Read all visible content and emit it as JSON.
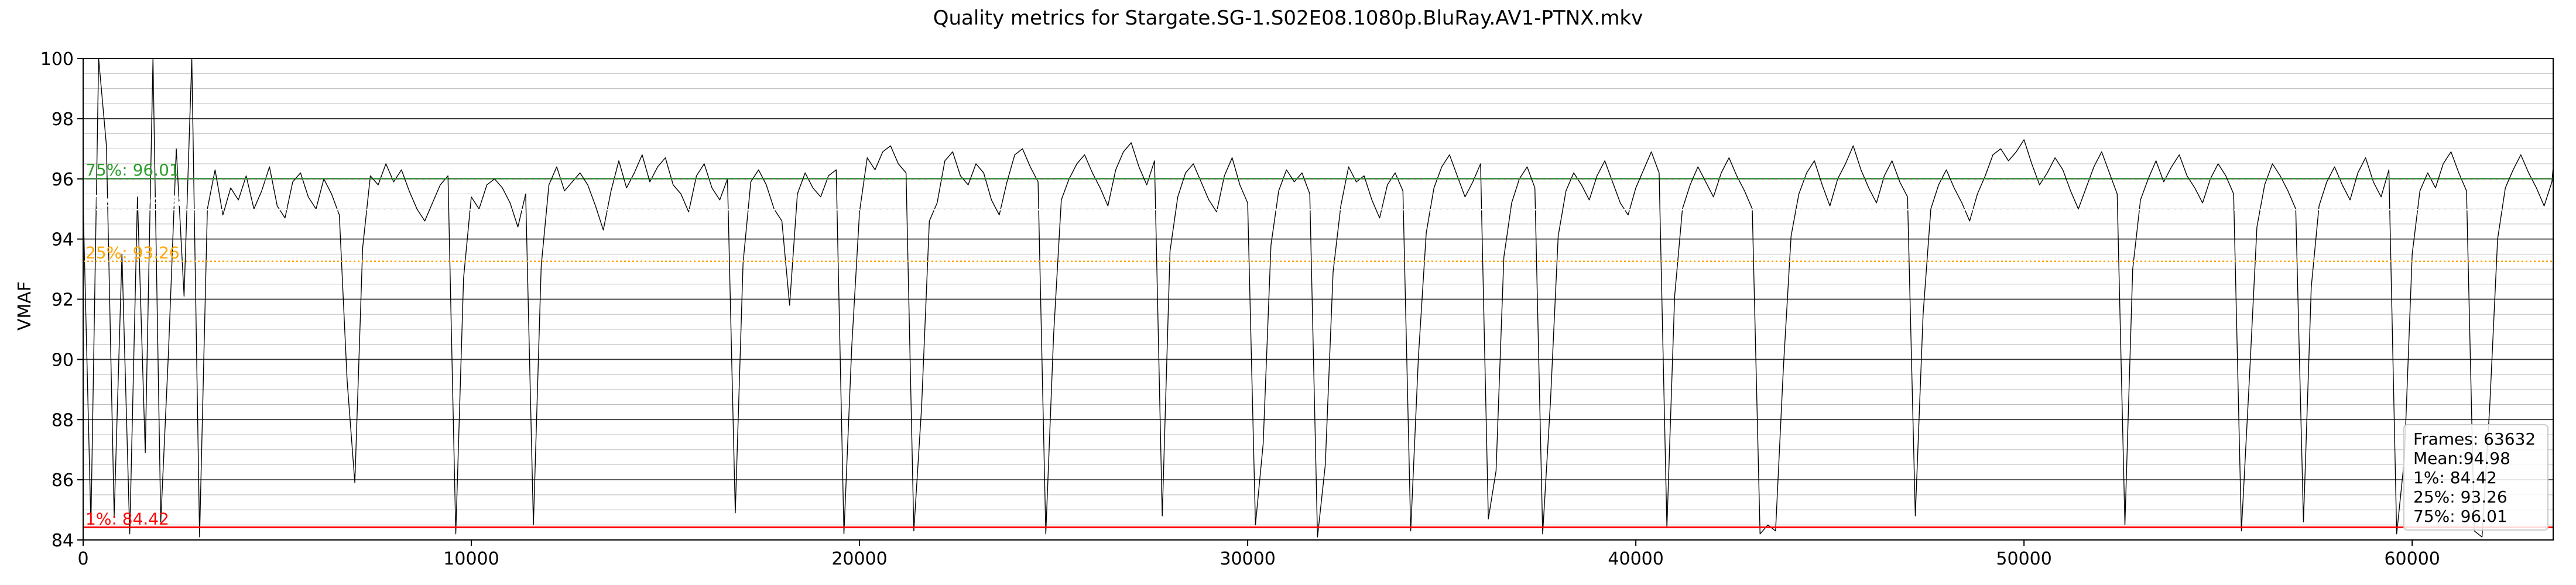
{
  "chart_data": {
    "type": "line",
    "title": "Quality metrics for Stargate.SG-1.S02E08.1080p.BluRay.AV1-PTNX.mkv",
    "xlabel": "",
    "ylabel": "VMAF",
    "xlim": [
      0,
      63632
    ],
    "ylim": [
      84,
      100
    ],
    "x_ticks": [
      0,
      10000,
      20000,
      30000,
      40000,
      50000,
      60000
    ],
    "y_ticks": [
      84,
      86,
      88,
      90,
      92,
      94,
      96,
      98,
      100
    ],
    "grid": "horizontal, major and minor",
    "series": [
      {
        "color": "#000000",
        "frames": 63632,
        "sample_step": 200,
        "values": [
          95.2,
          84.5,
          100,
          97.1,
          84.8,
          93.5,
          84.2,
          95.4,
          86.9,
          100,
          84.6,
          90.3,
          97.0,
          92.1,
          100,
          84.1,
          95.0,
          96.3,
          94.8,
          95.7,
          95.3,
          96.1,
          95.0,
          95.6,
          96.4,
          95.1,
          94.7,
          95.9,
          96.2,
          95.4,
          95.0,
          96.0,
          95.5,
          94.8,
          89.3,
          85.9,
          93.7,
          96.1,
          95.8,
          96.5,
          95.9,
          96.3,
          95.6,
          95.0,
          94.6,
          95.2,
          95.8,
          96.1,
          84.2,
          92.7,
          95.4,
          95.0,
          95.8,
          96.0,
          95.7,
          95.2,
          94.4,
          95.5,
          84.5,
          93.1,
          95.8,
          96.4,
          95.6,
          95.9,
          96.2,
          95.8,
          95.1,
          94.3,
          95.6,
          96.6,
          95.7,
          96.2,
          96.8,
          95.9,
          96.4,
          96.7,
          95.8,
          95.5,
          94.9,
          96.1,
          96.5,
          95.7,
          95.3,
          96.0,
          84.9,
          93.2,
          95.9,
          96.3,
          95.8,
          95.0,
          94.6,
          91.8,
          95.5,
          96.2,
          95.7,
          95.4,
          96.1,
          96.3,
          84.2,
          90.4,
          94.9,
          96.7,
          96.3,
          96.9,
          97.1,
          96.5,
          96.2,
          84.3,
          88.4,
          94.6,
          95.2,
          96.6,
          96.9,
          96.1,
          95.8,
          96.5,
          96.2,
          95.3,
          94.8,
          95.9,
          96.8,
          97.0,
          96.4,
          95.9,
          84.2,
          90.8,
          95.3,
          96.0,
          96.5,
          96.8,
          96.2,
          95.7,
          95.1,
          96.3,
          96.9,
          97.2,
          96.4,
          95.8,
          96.6,
          84.8,
          93.6,
          95.4,
          96.2,
          96.5,
          95.9,
          95.3,
          94.9,
          96.1,
          96.7,
          95.8,
          95.2,
          84.5,
          87.2,
          93.8,
          95.6,
          96.3,
          95.9,
          96.2,
          95.5,
          84.1,
          86.5,
          92.9,
          95.1,
          96.4,
          95.9,
          96.1,
          95.3,
          94.7,
          95.8,
          96.2,
          95.6,
          84.3,
          90.1,
          94.2,
          95.7,
          96.4,
          96.8,
          96.1,
          95.4,
          95.9,
          96.5,
          84.7,
          86.3,
          93.4,
          95.2,
          96.0,
          96.4,
          95.7,
          84.2,
          88.6,
          94.1,
          95.6,
          96.2,
          95.8,
          95.3,
          96.1,
          96.6,
          95.9,
          95.2,
          94.8,
          95.7,
          96.3,
          96.9,
          96.2,
          84.4,
          92.1,
          95.0,
          95.8,
          96.4,
          95.9,
          95.4,
          96.2,
          96.7,
          96.1,
          95.6,
          95.0,
          84.2,
          84.5,
          84.3,
          89.7,
          94.1,
          95.5,
          96.2,
          96.6,
          95.8,
          95.1,
          96.0,
          96.5,
          97.1,
          96.3,
          95.7,
          95.2,
          96.1,
          96.6,
          95.9,
          95.4,
          84.8,
          91.5,
          95.0,
          95.8,
          96.3,
          95.7,
          95.2,
          94.6,
          95.5,
          96.1,
          96.8,
          97.0,
          96.6,
          96.9,
          97.3,
          96.5,
          95.8,
          96.2,
          96.7,
          96.3,
          95.6,
          95.0,
          95.7,
          96.4,
          96.9,
          96.2,
          95.5,
          84.5,
          93.0,
          95.3,
          96.0,
          96.6,
          95.9,
          96.4,
          96.8,
          96.1,
          95.7,
          95.2,
          96.0,
          96.5,
          96.1,
          95.5,
          84.3,
          89.2,
          94.4,
          95.8,
          96.5,
          96.1,
          95.6,
          95.0,
          84.6,
          92.4,
          95.1,
          95.9,
          96.4,
          95.8,
          95.3,
          96.2,
          96.7,
          95.9,
          95.4,
          96.3,
          84.2,
          86.7,
          93.5,
          95.6,
          96.2,
          95.7,
          96.5,
          96.9,
          96.2,
          95.6,
          84.3,
          84.1,
          88.5,
          94.0,
          95.7,
          96.3,
          96.8,
          96.2,
          95.7,
          95.1,
          95.9,
          96.4,
          96.8,
          96.3,
          95.6,
          95.2,
          96.1,
          84.7,
          90.6,
          94.8,
          95.8,
          96.3,
          95.7,
          95.2,
          94.6,
          95.7,
          96.3,
          95.8,
          95.3,
          96.4,
          84.2,
          84.4,
          91.1,
          94.5,
          95.9,
          96.4,
          95.8,
          95.3,
          96.1,
          96.6,
          96.0,
          95.4,
          94.9,
          95.8,
          96.3,
          84.9,
          92.8,
          95.2,
          96.0,
          96.5,
          95.9,
          95.4,
          96.2,
          84.4,
          89.8,
          94.3,
          95.7,
          96.4,
          96.0,
          95.5,
          84.6,
          91.7,
          95.0,
          95.8,
          96.3,
          95.8,
          95.2,
          94.7,
          95.6,
          96.1,
          96.7,
          96.2,
          95.7,
          95.2,
          96.0,
          96.5,
          84.3,
          88.1,
          93.7,
          95.4,
          96.1,
          96.6,
          96.0,
          95.5,
          96.3,
          96.8,
          96.2,
          84.5,
          84.2,
          90.9,
          94.6,
          95.9,
          96.5,
          95.9,
          95.3,
          96.1,
          96.7,
          96.2,
          95.6,
          84.2,
          92.3,
          95.1,
          95.9,
          96.4,
          95.8,
          95.3,
          94.8,
          95.7,
          96.2,
          96.7,
          84.8,
          84.3,
          89.4,
          93.9,
          95.6,
          96.2,
          96.7,
          96.1,
          95.6,
          95.0,
          95.8,
          96.4,
          96.8,
          96.3,
          95.7,
          96.1,
          96.6,
          95.9,
          95.2,
          94.6,
          95.5,
          96.1,
          96.6,
          96.0,
          95.4,
          95.9,
          96.5,
          95.8,
          95.2,
          94.7,
          95.6,
          96.2,
          96.7,
          96.2,
          95.6,
          95.0,
          84.6,
          91.9,
          94.8,
          95.7,
          96.3,
          95.8,
          95.2,
          96.0,
          96.6,
          95.9,
          95.3,
          94.8,
          95.7,
          96.2,
          84.2,
          84.5,
          88.9,
          93.6,
          95.4,
          96.1,
          96.6,
          96.0,
          95.4,
          96.2,
          96.8,
          96.3,
          95.7,
          84.2,
          90.2,
          94.4,
          95.8,
          96.4,
          95.8,
          95.2,
          94.5,
          95.6,
          96.1,
          96.7,
          96.1,
          95.4,
          84.4,
          84.1,
          84.6,
          92.0,
          94.9,
          95.8,
          96.3,
          95.7,
          95.1,
          95.9,
          96.5,
          96.0,
          95.3,
          94.7,
          95.6,
          96.2,
          84.5,
          89.6,
          94.1,
          95.7,
          96.4,
          95.8,
          95.1,
          94.6,
          84.2,
          86.4,
          92.6,
          95.0,
          95.8,
          96.3,
          95.7,
          95.2,
          95.9,
          96.4,
          84.3,
          84.7,
          91.4,
          94.7,
          95.9,
          96.5,
          96.0,
          95.4,
          94.8,
          95.6,
          96.3,
          96.8,
          96.2,
          95.5,
          94.9,
          95.8,
          96.4,
          96.0,
          95.4,
          94.7,
          95.5,
          96.2,
          95.8,
          95.2,
          94.6,
          95.4,
          96.0,
          96.5,
          96.0,
          95.3,
          84.6,
          84.2,
          90.5,
          94.3,
          95.7,
          96.3,
          95.9,
          95.2,
          94.5,
          95.5,
          96.1,
          95.6,
          95.0,
          94.4,
          95.3,
          95.9,
          96.4,
          96.9,
          96.5,
          96.8,
          97.0,
          96.6,
          96.7,
          96.9,
          96.4,
          96.8,
          84.3,
          84.9,
          84.2,
          84.6,
          84.1,
          84.4,
          84.5,
          84.7,
          84.3,
          84.2,
          84.8,
          84.1,
          84.5,
          84.3,
          84.6,
          84.2,
          84.4,
          84.7,
          84.2,
          84.5,
          84.3,
          84.6,
          84.1,
          84.4,
          84.2,
          84.8,
          84.3,
          84.5,
          84.2,
          84.6,
          84.4,
          84.1
        ]
      }
    ],
    "reference_lines": [
      {
        "label": "75%: 96.01",
        "value": 96.01,
        "color": "#2ca02c",
        "style": "dashed"
      },
      {
        "label": "Mean: 94.98",
        "value": 94.98,
        "color": "#ffffff",
        "style": "dashed"
      },
      {
        "label": "25%: 93.26",
        "value": 93.26,
        "color": "#ffa500",
        "style": "dotted"
      },
      {
        "label": "1%: 84.42",
        "value": 84.42,
        "color": "#ff0000",
        "style": "solid"
      }
    ],
    "stats_box": {
      "position": "bottom-right",
      "lines": [
        "Frames: 63632",
        "Mean:94.98",
        "1%: 84.42",
        "25%: 93.26",
        "75%: 96.01"
      ]
    }
  }
}
